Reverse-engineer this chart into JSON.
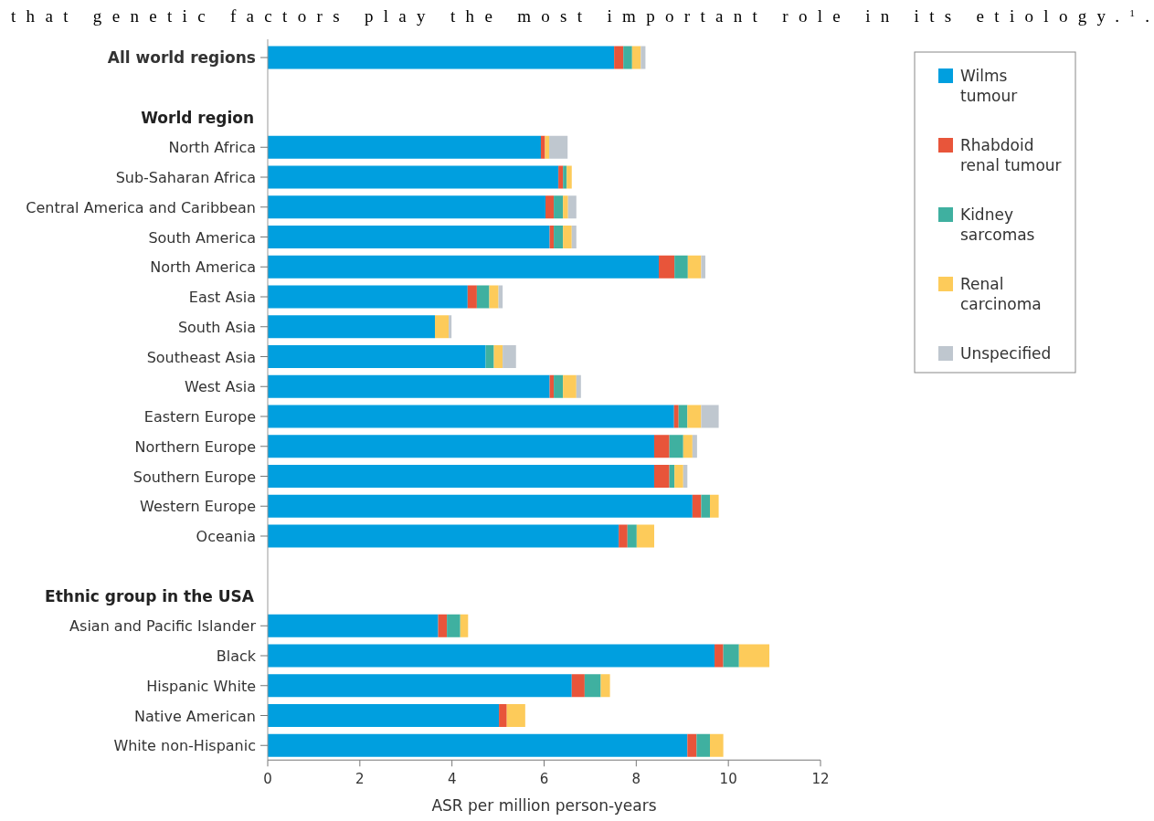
{
  "chart_data": {
    "type": "bar",
    "orientation": "horizontal",
    "stacked": true,
    "categories": [
      "All world regions",
      null,
      null,
      "North Africa",
      "Sub-Saharan Africa",
      "Central America and Caribbean",
      "South America",
      "North America",
      "East Asia",
      "South Asia",
      "Southeast Asia",
      "West Asia",
      "Eastern Europe",
      "Northern Europe",
      "Southern Europe",
      "Western Europe",
      "Oceania",
      null,
      null,
      "Asian and Pacific Islander",
      "Black",
      "Hispanic White",
      "Native American",
      "White non-Hispanic"
    ],
    "series": [
      {
        "name": "Wilms tumour",
        "color": "#009fdf",
        "values": [
          7.52,
          null,
          null,
          5.93,
          6.31,
          6.03,
          6.12,
          8.49,
          4.34,
          3.63,
          4.73,
          6.12,
          8.82,
          8.39,
          8.39,
          9.22,
          7.62,
          null,
          null,
          3.7,
          9.7,
          6.6,
          5.02,
          9.11
        ]
      },
      {
        "name": "Rhabdoid renal tumour",
        "color": "#e8553a",
        "values": [
          0.2,
          null,
          null,
          0.09,
          0.1,
          0.18,
          0.09,
          0.34,
          0.2,
          0,
          0,
          0.09,
          0.1,
          0.33,
          0.33,
          0.19,
          0.19,
          null,
          null,
          0.19,
          0.19,
          0.28,
          0.17,
          0.2
        ]
      },
      {
        "name": "Kidney sarcomas",
        "color": "#3fb0a0",
        "values": [
          0.19,
          null,
          null,
          0,
          0.08,
          0.2,
          0.2,
          0.29,
          0.27,
          0,
          0.18,
          0.2,
          0.19,
          0.3,
          0.11,
          0.19,
          0.2,
          null,
          null,
          0.29,
          0.34,
          0.35,
          0,
          0.29
        ]
      },
      {
        "name": "Renal carcinoma",
        "color": "#fdcb5a",
        "values": [
          0.19,
          null,
          null,
          0.09,
          0.11,
          0.11,
          0.19,
          0.29,
          0.2,
          0.3,
          0.19,
          0.29,
          0.3,
          0.2,
          0.19,
          0.19,
          0.38,
          null,
          null,
          0.17,
          0.66,
          0.2,
          0.4,
          0.29
        ]
      },
      {
        "name": "Unspecified",
        "color": "#bfc7cf",
        "values": [
          0.1,
          null,
          null,
          0.4,
          0,
          0.18,
          0.1,
          0.09,
          0.09,
          0.06,
          0.29,
          0.1,
          0.38,
          0.1,
          0.09,
          0,
          0,
          null,
          null,
          0,
          0,
          0,
          0,
          0
        ]
      }
    ],
    "xlim": [
      0,
      12
    ],
    "xticks": [
      0,
      2,
      4,
      6,
      8,
      10,
      12
    ],
    "xlabel": "ASR per million person-years",
    "legend": "top right",
    "annotations": [
      "that genetic factors play the most important role in its etiology.$^{1}$.",
      "World region",
      "Ethnic group in the USA"
    ]
  }
}
